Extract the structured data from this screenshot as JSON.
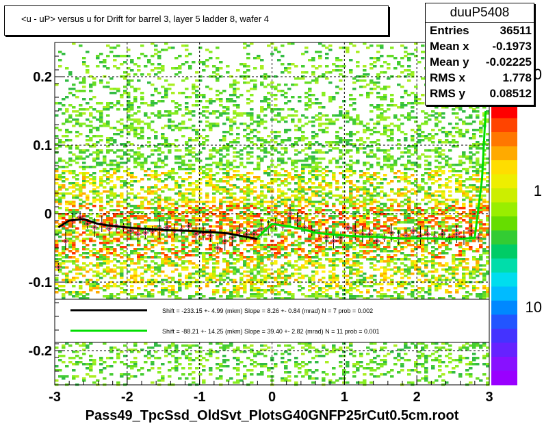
{
  "chart_data": {
    "type": "scatter",
    "title": "<u - uP>       versus   u for Drift for barrel 3, layer 5 ladder 8, wafer 4",
    "xlabel": "",
    "ylabel": "",
    "xlim": [
      -3,
      3
    ],
    "ylim": [
      -0.25,
      0.25
    ],
    "x_ticks": [
      -3,
      -2,
      -1,
      0,
      1,
      2,
      3
    ],
    "x_tick_labels": [
      "-3",
      "-2",
      "-1",
      "0",
      "1",
      "2",
      "3"
    ],
    "y_ticks": [
      -0.2,
      -0.1,
      0,
      0.1,
      0.2
    ],
    "y_tick_labels": [
      "-0.2",
      "-0.1",
      "0",
      "0.1",
      "0.2"
    ],
    "grid": true,
    "colorbar_labels": [
      "0",
      "1",
      "10"
    ],
    "series": [
      {
        "name": "profile",
        "x": [
          -2.95,
          -2.85,
          -2.75,
          -2.65,
          -2.55,
          -2.45,
          -2.35,
          -2.25,
          -2.15,
          -2.05,
          -1.95,
          -1.85,
          -1.75,
          -1.65,
          -1.55,
          -1.45,
          -1.35,
          -1.25,
          -1.15,
          -1.05,
          -0.95,
          -0.85,
          -0.75,
          -0.65,
          -0.55,
          -0.45,
          -0.35,
          -0.25,
          -0.15,
          -0.05,
          0.05,
          0.15,
          0.25,
          0.35,
          0.45,
          0.55,
          0.65,
          0.75,
          0.85,
          0.95,
          1.05,
          1.15,
          1.25,
          1.35,
          1.45,
          1.55,
          1.65,
          1.75,
          1.85,
          1.95,
          2.05,
          2.15,
          2.25,
          2.35,
          2.45,
          2.55,
          2.65,
          2.75,
          2.85
        ],
        "y": [
          -0.078,
          -0.04,
          -0.01,
          -0.005,
          -0.015,
          -0.02,
          -0.015,
          -0.022,
          -0.018,
          -0.02,
          -0.025,
          -0.03,
          -0.028,
          -0.025,
          -0.022,
          -0.02,
          -0.025,
          -0.024,
          -0.018,
          -0.03,
          -0.028,
          -0.032,
          -0.05,
          -0.04,
          -0.035,
          -0.025,
          -0.03,
          -0.03,
          -0.022,
          -0.02,
          -0.015,
          -0.018,
          0.0,
          -0.01,
          -0.02,
          -0.025,
          -0.028,
          -0.035,
          -0.04,
          -0.035,
          -0.02,
          -0.025,
          -0.03,
          -0.03,
          -0.04,
          -0.035,
          -0.028,
          -0.035,
          -0.032,
          -0.025,
          -0.032,
          -0.03,
          -0.035,
          -0.03,
          -0.035,
          -0.03,
          -0.035,
          -0.025,
          -0.035
        ]
      }
    ],
    "fits": [
      {
        "color": "#000000",
        "legend": "Shift =  -233.15 +- 4.99 (mkm) Slope =     8.26 +- 0.84 (mrad)  N = 7 prob = 0.002",
        "x": [
          -2.95,
          -2.8,
          -2.6,
          -2.4,
          -2.2,
          -2.0,
          -1.8,
          -1.6,
          -1.4,
          -1.2,
          -1.0,
          -0.8,
          -0.6,
          -0.4,
          -0.2
        ],
        "y": [
          -0.02,
          -0.01,
          -0.008,
          -0.015,
          -0.018,
          -0.02,
          -0.022,
          -0.023,
          -0.024,
          -0.025,
          -0.026,
          -0.027,
          -0.029,
          -0.033,
          -0.037
        ]
      },
      {
        "color": "#00dd00",
        "legend": "Shift =   -88.21 +- 14.25 (mkm) Slope =    39.40 +- 2.82 (mrad)  N = 11 prob = 0.001",
        "x": [
          -0.2,
          0.0,
          0.2,
          0.4,
          0.6,
          0.8,
          1.0,
          1.2,
          1.4,
          1.6,
          1.8,
          2.0,
          2.2,
          2.4,
          2.6,
          2.8,
          2.9,
          2.95
        ],
        "y": [
          -0.035,
          -0.015,
          -0.018,
          -0.022,
          -0.028,
          -0.03,
          -0.032,
          -0.033,
          -0.034,
          -0.035,
          -0.036,
          -0.036,
          -0.036,
          -0.037,
          -0.037,
          -0.035,
          0.05,
          0.15
        ]
      }
    ]
  },
  "stats": {
    "name": "duuP5408",
    "rows": [
      {
        "label": "Entries",
        "value": "36511"
      },
      {
        "label": "Mean x",
        "value": "-0.1973"
      },
      {
        "label": "Mean y",
        "value": "-0.02225"
      },
      {
        "label": "RMS x",
        "value": "1.778"
      },
      {
        "label": "RMS y",
        "value": "0.08512"
      }
    ]
  },
  "footer": "Pass49_TpcSsd_OldSvt_PlotsG40GNFP25rCut0.5cm.root",
  "colors": {
    "frame": "#000000",
    "legend_bg": "#ffffff",
    "heat_low": "#66dd22",
    "heat_mid": "#ffdd00",
    "heat_high": "#ff3300"
  }
}
